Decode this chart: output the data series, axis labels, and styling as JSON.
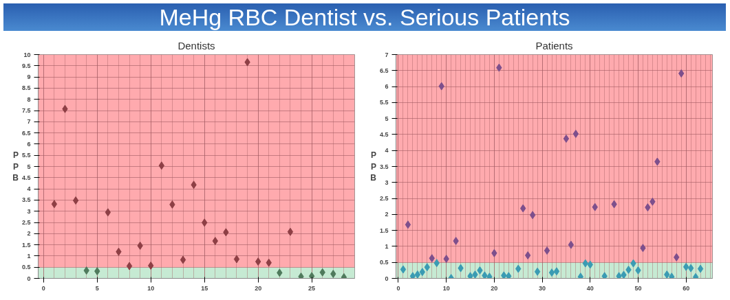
{
  "chart_data": [
    {
      "type": "scatter",
      "title": "MeHg RBC Dentist vs. Serious Patients",
      "subtitle": "Dentists",
      "ylabel": "PPB",
      "xlim": [
        -0.5,
        29
      ],
      "xticks": [
        0,
        5,
        10,
        15,
        20,
        25
      ],
      "ylim": [
        0,
        10
      ],
      "yticks": [
        0,
        0.5,
        1,
        1.5,
        2,
        2.5,
        3,
        3.5,
        4,
        4.5,
        5,
        5.5,
        6,
        6.5,
        7,
        7.5,
        8,
        8.5,
        9,
        9.5,
        10
      ],
      "grid": true,
      "marker": "diamond",
      "bands": [
        {
          "axis": "y",
          "from": 0,
          "to": 0.5,
          "color": "#c6ead3"
        },
        {
          "axis": "y",
          "from": 0.5,
          "to": 10,
          "color": "#ffaaae"
        }
      ],
      "series": [
        {
          "color": "#8e3f45",
          "x": [
            1,
            2,
            3,
            6,
            7,
            8,
            9,
            10,
            11,
            12,
            13,
            14,
            15,
            16,
            17,
            18,
            19,
            20,
            21,
            23
          ],
          "values": [
            3.32,
            7.57,
            3.48,
            2.95,
            1.19,
            0.55,
            1.46,
            0.57,
            5.04,
            3.3,
            0.83,
            4.18,
            2.49,
            1.67,
            2.06,
            0.86,
            9.66,
            0.75,
            0.7,
            2.08
          ]
        },
        {
          "color": "#4f7a5c",
          "x": [
            4,
            5,
            22,
            24,
            25,
            26,
            27,
            28
          ],
          "values": [
            0.35,
            0.32,
            0.25,
            0.08,
            0.1,
            0.27,
            0.2,
            0.05
          ]
        }
      ]
    },
    {
      "type": "scatter",
      "title": "Patients",
      "ylabel": "PPB",
      "xlim": [
        -0.5,
        65.5
      ],
      "xticks": [
        0,
        10,
        20,
        30,
        40,
        50,
        60
      ],
      "ylim": [
        0,
        7
      ],
      "yticks": [
        0,
        0.5,
        1,
        1.5,
        2,
        2.5,
        3,
        3.5,
        4,
        4.5,
        5,
        5.5,
        6,
        6.5,
        7
      ],
      "grid": true,
      "marker": "diamond",
      "bands": [
        {
          "axis": "y",
          "from": 0,
          "to": 0.5,
          "color": "#c6ead3"
        },
        {
          "axis": "y",
          "from": 0.5,
          "to": 7,
          "color": "#ffaaae"
        }
      ],
      "series": [
        {
          "color": "#7d4f8c",
          "x": [
            2,
            7,
            9,
            10,
            12,
            20,
            21,
            26,
            27,
            28,
            31,
            35,
            36,
            37,
            41,
            45,
            51,
            52,
            53,
            54,
            58,
            59
          ],
          "values": [
            1.68,
            0.63,
            6.01,
            0.61,
            1.17,
            0.79,
            6.59,
            2.19,
            0.72,
            1.98,
            0.87,
            4.37,
            1.05,
            4.52,
            2.23,
            2.32,
            0.95,
            2.22,
            2.4,
            3.65,
            0.66,
            6.41
          ]
        },
        {
          "color": "#3a9bb3",
          "x": [
            1,
            3,
            4,
            5,
            6,
            8,
            11,
            13,
            15,
            16,
            17,
            18,
            19,
            22,
            23,
            25,
            29,
            32,
            33,
            38,
            39,
            40,
            43,
            46,
            47,
            48,
            49,
            50,
            56,
            57,
            60,
            61,
            62,
            63
          ],
          "values": [
            0.28,
            0.07,
            0.12,
            0.2,
            0.35,
            0.48,
            0.01,
            0.32,
            0.07,
            0.12,
            0.25,
            0.09,
            0.05,
            0.09,
            0.07,
            0.3,
            0.21,
            0.18,
            0.22,
            0.05,
            0.47,
            0.43,
            0.07,
            0.07,
            0.11,
            0.27,
            0.47,
            0.25,
            0.12,
            0.05,
            0.36,
            0.32,
            0.04,
            0.3
          ]
        }
      ]
    }
  ]
}
